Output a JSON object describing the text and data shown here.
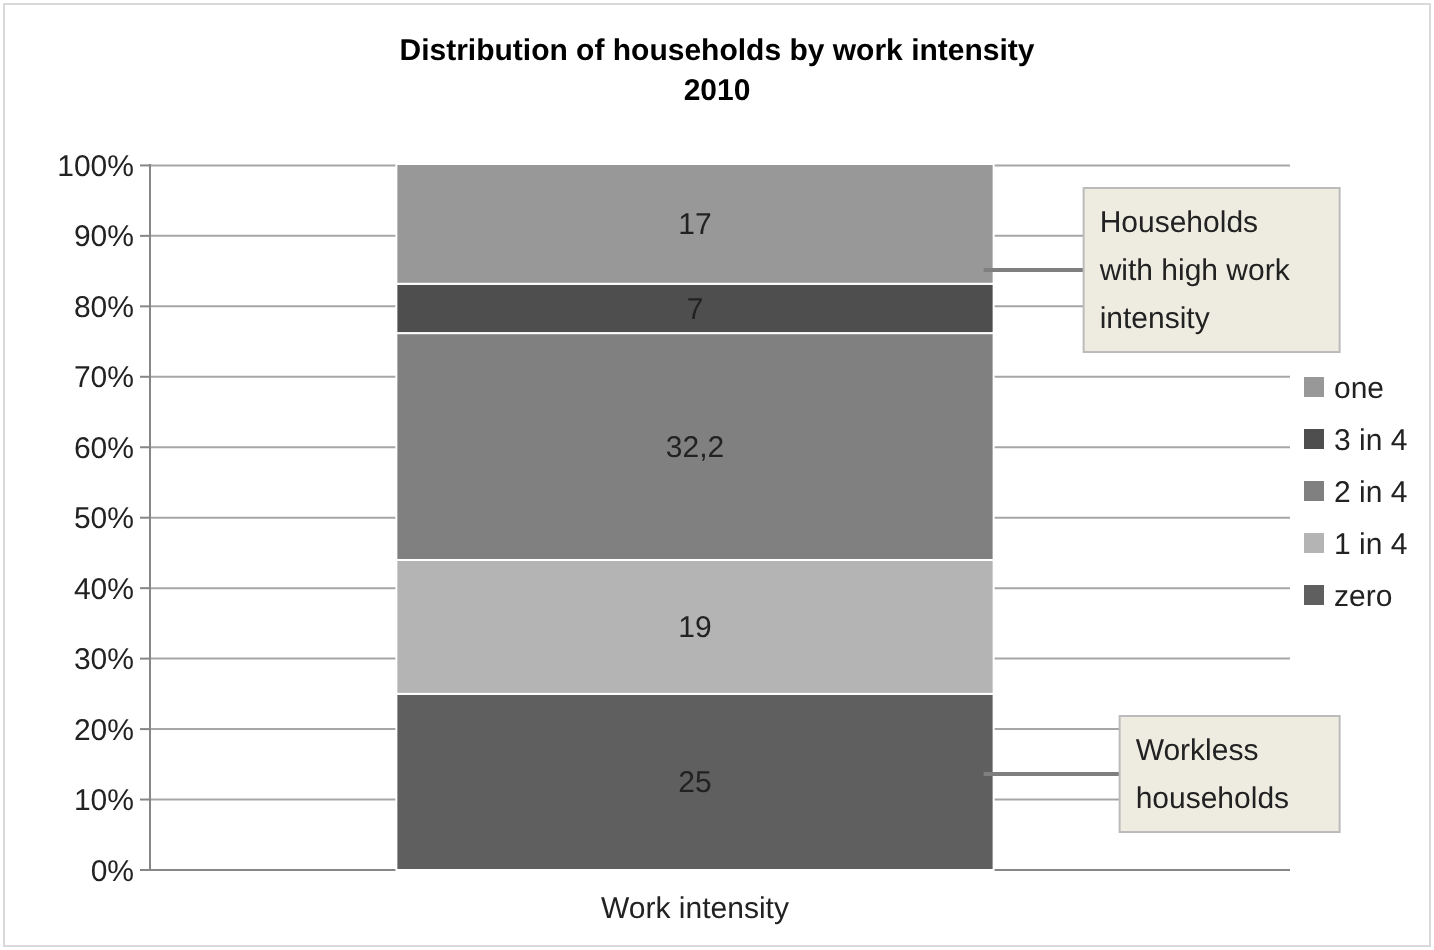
{
  "chart_data": {
    "type": "bar",
    "stacked": true,
    "title": "Distribution of households by work intensity",
    "subtitle": "2010",
    "categories": [
      "Work intensity"
    ],
    "series": [
      {
        "name": "zero",
        "color": "#5f5f5f",
        "values": [
          25
        ],
        "value_labels": [
          "25"
        ]
      },
      {
        "name": "1 in 4",
        "color": "#b4b4b4",
        "values": [
          19
        ],
        "value_labels": [
          "19"
        ]
      },
      {
        "name": "2 in 4",
        "color": "#808080",
        "values": [
          32.2
        ],
        "value_labels": [
          "32,2"
        ]
      },
      {
        "name": "3 in 4",
        "color": "#4e4e4e",
        "values": [
          7
        ],
        "value_labels": [
          "7"
        ]
      },
      {
        "name": "one",
        "color": "#989898",
        "values": [
          17
        ],
        "value_labels": [
          "17"
        ]
      }
    ],
    "ylim": [
      0,
      100.2
    ],
    "yticks": [
      {
        "value": 0,
        "label": "0%"
      },
      {
        "value": 10,
        "label": "10%"
      },
      {
        "value": 20,
        "label": "20%"
      },
      {
        "value": 30,
        "label": "30%"
      },
      {
        "value": 40,
        "label": "40%"
      },
      {
        "value": 50,
        "label": "50%"
      },
      {
        "value": 60,
        "label": "60%"
      },
      {
        "value": 70,
        "label": "70%"
      },
      {
        "value": 80,
        "label": "80%"
      },
      {
        "value": 90,
        "label": "90%"
      },
      {
        "value": 100,
        "label": "100%"
      }
    ],
    "grid": "y",
    "legend": "right",
    "annotations": [
      "Households with high work intensity",
      "Workless households"
    ]
  }
}
